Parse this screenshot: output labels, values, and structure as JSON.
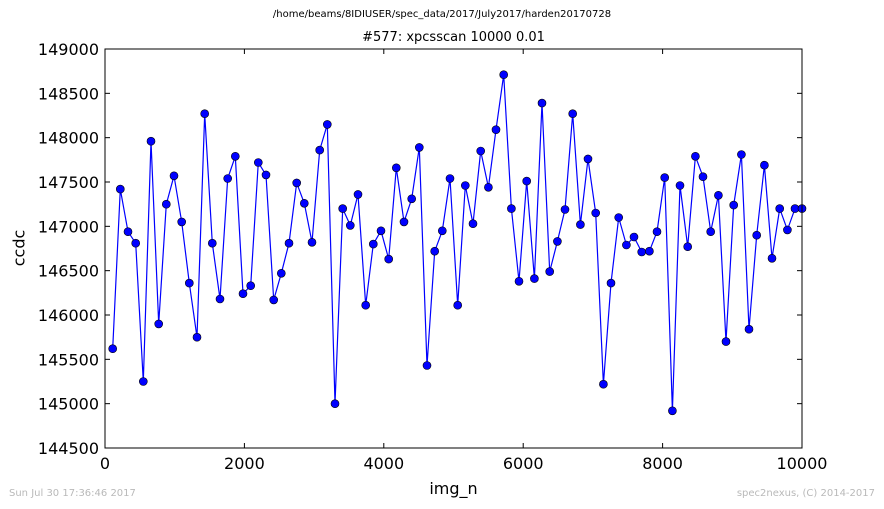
{
  "header": {
    "path": "/home/beams/8IDIUSER/spec_data/2017/July2017/harden20170728"
  },
  "footer": {
    "timestamp": "Sun Jul 30 17:36:46 2017",
    "credit": "spec2nexus, (C) 2014-2017"
  },
  "colors": {
    "series": "#0000ff",
    "marker": "#0000ff",
    "axis": "#000000",
    "footer_text": "#b9b9b9"
  },
  "chart_data": {
    "type": "line",
    "title": "#577: xpcsscan 10000 0.01",
    "xlabel": "img_n",
    "ylabel": "ccdc",
    "xlim": [
      0,
      10000
    ],
    "ylim": [
      144500,
      149000
    ],
    "xticks": [
      0,
      2000,
      4000,
      6000,
      8000,
      10000
    ],
    "yticks": [
      144500,
      145000,
      145500,
      146000,
      146500,
      147000,
      147500,
      148000,
      148500,
      149000
    ],
    "grid": false,
    "legend": "none",
    "series": [
      {
        "marker": "circle",
        "x": [
          110,
          220,
          330,
          440,
          550,
          660,
          770,
          880,
          990,
          1100,
          1210,
          1320,
          1430,
          1540,
          1650,
          1760,
          1870,
          1980,
          2090,
          2200,
          2310,
          2420,
          2530,
          2640,
          2750,
          2860,
          2970,
          3080,
          3190,
          3300,
          3410,
          3520,
          3630,
          3740,
          3850,
          3960,
          4070,
          4180,
          4290,
          4400,
          4510,
          4620,
          4730,
          4840,
          4950,
          5060,
          5170,
          5280,
          5390,
          5500,
          5610,
          5720,
          5830,
          5940,
          6050,
          6160,
          6270,
          6380,
          6490,
          6600,
          6710,
          6820,
          6930,
          7040,
          7150,
          7260,
          7370,
          7480,
          7590,
          7700,
          7810,
          7920,
          8030,
          8140,
          8250,
          8360,
          8470,
          8580,
          8690,
          8800,
          8910,
          9020,
          9130,
          9240,
          9350,
          9460,
          9570,
          9680,
          9790,
          9900,
          10000
        ],
        "y": [
          145620,
          147420,
          146940,
          146810,
          145250,
          147960,
          145900,
          147250,
          147570,
          147050,
          146360,
          145750,
          148270,
          146810,
          146180,
          147540,
          147790,
          146240,
          146330,
          147720,
          147580,
          146170,
          146470,
          146810,
          147490,
          147260,
          146820,
          147860,
          148150,
          145000,
          147200,
          147010,
          147360,
          146110,
          146800,
          146950,
          146630,
          147660,
          147050,
          147310,
          147890,
          145430,
          146720,
          146950,
          147540,
          146110,
          147460,
          147030,
          147850,
          147440,
          148090,
          148710,
          147200,
          146380,
          147510,
          146410,
          148390,
          146490,
          146830,
          147190,
          148270,
          147020,
          147760,
          147150,
          145220,
          146360,
          147100,
          146790,
          146880,
          146710,
          146720,
          146940,
          147550,
          144920,
          147460,
          146770,
          147790,
          147560,
          146940,
          147350,
          145700,
          147240,
          147810,
          145840,
          146900,
          147690,
          146640,
          147200,
          146960,
          147200,
          147200
        ]
      }
    ]
  }
}
